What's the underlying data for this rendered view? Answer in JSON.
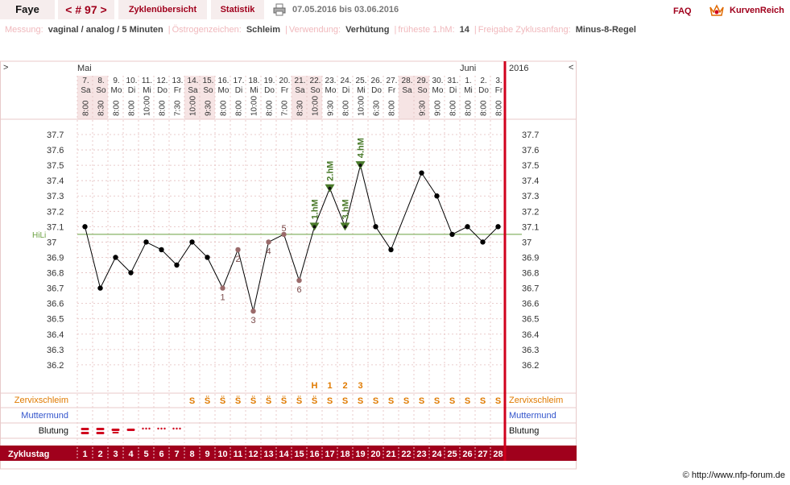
{
  "header": {
    "name": "Faye",
    "cycle_label": "< # 97 >",
    "tab_overview": "Zyklenübersicht",
    "tab_statistics": "Statistik",
    "date_range": "07.05.2016 bis 03.06.2016",
    "faq": "FAQ",
    "logo_text": "KurvenReich"
  },
  "info": [
    {
      "label": "Messung:",
      "value": "vaginal / analog / 5 Minuten"
    },
    {
      "label": "Östrogenzeichen:",
      "value": "Schleim"
    },
    {
      "label": "Verwendung:",
      "value": "Verhütung"
    },
    {
      "label": "früheste 1.hM:",
      "value": "14"
    },
    {
      "label": "Freigabe Zyklusanfang:",
      "value": "Minus-8-Regel"
    }
  ],
  "nav": {
    "left": ">",
    "right": "<"
  },
  "months": [
    {
      "name": "Mai",
      "start_day": 1
    },
    {
      "name": "Juni",
      "start_day": 26
    }
  ],
  "year": "2016",
  "copyright": "© http://www.nfp-forum.de",
  "colors": {
    "accent": "#a0001c",
    "weekend_bg": "#f6e4e4",
    "cervix": "#e07a00",
    "muttermund": "#3355cc",
    "mark_green": "#4a7a2a",
    "annot_brown": "#7a4a4a",
    "grid": "#e3bcbc"
  },
  "chart_data": {
    "type": "line",
    "title": "",
    "ylabel": "",
    "xlabel": "Zyklustag",
    "ylim": [
      36.2,
      37.7
    ],
    "yticks": [
      "37.7",
      "37.6",
      "37.5",
      "37.4",
      "37.3",
      "37.2",
      "37.1",
      "37",
      "36.9",
      "36.8",
      "36.7",
      "36.6",
      "36.5",
      "36.4",
      "36.3",
      "36.2"
    ],
    "coverline": {
      "label": "HiLi",
      "value": 37.05
    },
    "days": [
      {
        "date": "7.",
        "wd": "Sa",
        "time": "8:00",
        "weekend": true
      },
      {
        "date": "8.",
        "wd": "So",
        "time": "8:30",
        "weekend": true
      },
      {
        "date": "9.",
        "wd": "Mo",
        "time": "8:00",
        "weekend": false
      },
      {
        "date": "10.",
        "wd": "Di",
        "time": "8:00",
        "weekend": false
      },
      {
        "date": "11.",
        "wd": "Mi",
        "time": "10:00",
        "weekend": false
      },
      {
        "date": "12.",
        "wd": "Do",
        "time": "8:00",
        "weekend": false
      },
      {
        "date": "13.",
        "wd": "Fr",
        "time": "7:30",
        "weekend": false
      },
      {
        "date": "14.",
        "wd": "Sa",
        "time": "10:00",
        "weekend": true
      },
      {
        "date": "15.",
        "wd": "So",
        "time": "9:30",
        "weekend": true
      },
      {
        "date": "16.",
        "wd": "Mo",
        "time": "8:00",
        "weekend": false
      },
      {
        "date": "17.",
        "wd": "Di",
        "time": "8:00",
        "weekend": false
      },
      {
        "date": "18.",
        "wd": "Mi",
        "time": "10:00",
        "weekend": false
      },
      {
        "date": "19.",
        "wd": "Do",
        "time": "8:00",
        "weekend": false
      },
      {
        "date": "20.",
        "wd": "Fr",
        "time": "7:00",
        "weekend": false
      },
      {
        "date": "21.",
        "wd": "Sa",
        "time": "8:30",
        "weekend": true
      },
      {
        "date": "22.",
        "wd": "So",
        "time": "10:00",
        "weekend": true
      },
      {
        "date": "23.",
        "wd": "Mo",
        "time": "9:30",
        "weekend": false
      },
      {
        "date": "24.",
        "wd": "Di",
        "time": "8:00",
        "weekend": false
      },
      {
        "date": "25.",
        "wd": "Mi",
        "time": "10:00",
        "weekend": false
      },
      {
        "date": "26.",
        "wd": "Do",
        "time": "6:30",
        "weekend": false
      },
      {
        "date": "27.",
        "wd": "Fr",
        "time": "8:00",
        "weekend": false
      },
      {
        "date": "28.",
        "wd": "Sa",
        "time": "",
        "weekend": true
      },
      {
        "date": "29.",
        "wd": "So",
        "time": "9:30",
        "weekend": true
      },
      {
        "date": "30.",
        "wd": "Mo",
        "time": "9:00",
        "weekend": false
      },
      {
        "date": "31.",
        "wd": "Di",
        "time": "8:00",
        "weekend": false
      },
      {
        "date": "1.",
        "wd": "Mi",
        "time": "8:00",
        "weekend": false
      },
      {
        "date": "2.",
        "wd": "Do",
        "time": "8:00",
        "weekend": false
      },
      {
        "date": "3.",
        "wd": "Fr",
        "time": "8:00",
        "weekend": false
      }
    ],
    "temps": [
      37.1,
      36.7,
      36.9,
      36.8,
      37.0,
      36.95,
      36.85,
      37.0,
      36.9,
      36.7,
      36.95,
      36.55,
      37.0,
      37.05,
      36.75,
      37.1,
      37.35,
      37.1,
      37.5,
      37.1,
      36.95,
      null,
      37.45,
      37.3,
      37.05,
      37.1,
      37.0,
      37.1
    ],
    "low_labels": [
      {
        "day": 10,
        "label": "1",
        "pos": "below"
      },
      {
        "day": 11,
        "label": "2",
        "pos": "below"
      },
      {
        "day": 12,
        "label": "3",
        "pos": "below"
      },
      {
        "day": 13,
        "label": "4",
        "pos": "below"
      },
      {
        "day": 14,
        "label": "5",
        "pos": "above"
      },
      {
        "day": 15,
        "label": "6",
        "pos": "below"
      }
    ],
    "high_labels": [
      {
        "day": 16,
        "label": "1.hM"
      },
      {
        "day": 17,
        "label": "2.hM"
      },
      {
        "day": 18,
        "label": "3.hM"
      },
      {
        "day": 19,
        "label": "4.hM"
      }
    ],
    "peak_row": [
      {
        "day": 16,
        "label": "H"
      },
      {
        "day": 17,
        "label": "1"
      },
      {
        "day": 18,
        "label": "2"
      },
      {
        "day": 19,
        "label": "3"
      }
    ],
    "cervix_label": "Zervixschleim",
    "cervix": [
      "",
      "",
      "",
      "",
      "",
      "",
      "",
      "S",
      "S̈",
      "S̈",
      "S̈",
      "S̈",
      "S̈",
      "S̈",
      "S̈",
      "S̈",
      "S",
      "S",
      "S",
      "S",
      "S",
      "S",
      "S",
      "S",
      "S",
      "S",
      "S",
      "S"
    ],
    "muttermund_label": "Muttermund",
    "bleeding_label": "Blutung",
    "bleeding": [
      "heavy",
      "heavy",
      "medium",
      "light",
      "spot",
      "spot",
      "spot",
      "",
      "",
      "",
      "",
      "",
      "",
      "",
      "",
      "",
      "",
      "",
      "",
      "",
      "",
      "",
      "",
      "",
      "",
      "",
      "",
      ""
    ],
    "cycle_day_label": "Zyklustag",
    "cycle_days": [
      "1",
      "2",
      "3",
      "4",
      "5",
      "6",
      "7",
      "8",
      "9",
      "10",
      "11",
      "12",
      "13",
      "14",
      "15",
      "16",
      "17",
      "18",
      "19",
      "20",
      "21",
      "22",
      "23",
      "24",
      "25",
      "26",
      "27",
      "28"
    ]
  }
}
